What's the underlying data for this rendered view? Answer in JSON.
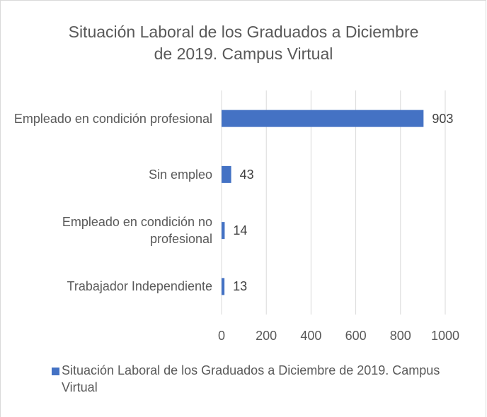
{
  "chart_data": {
    "type": "bar",
    "orientation": "horizontal",
    "title": "Situación Laboral de los Graduados a Diciembre de 2019. Campus Virtual",
    "categories": [
      "Empleado en condición profesional",
      "Sin empleo",
      "Empleado en condición no profesional",
      "Trabajador Independiente"
    ],
    "series": [
      {
        "name": "Situación Laboral de los Graduados a Diciembre de 2019. Campus Virtual",
        "color": "#4472c4",
        "values": [
          903,
          43,
          14,
          13
        ]
      }
    ],
    "xlim": [
      0,
      1000
    ],
    "xticks": [
      0,
      200,
      400,
      600,
      800,
      1000
    ],
    "grid": true,
    "legend": "bottom"
  }
}
